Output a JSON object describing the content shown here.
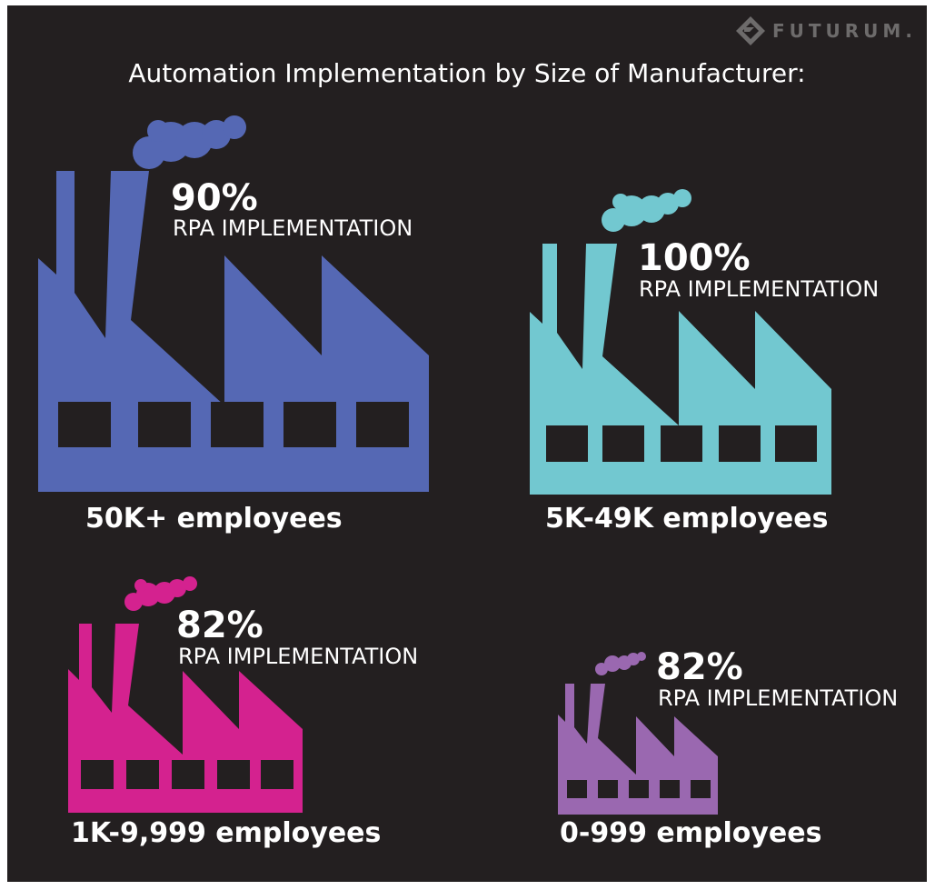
{
  "brand": {
    "name": "FUTURUM.",
    "icon": "futurum-logo-icon"
  },
  "chart_data": {
    "type": "pictograph",
    "title": "Automation Implementation by Size of Manufacturer:",
    "metric_label": "RPA IMPLEMENTATION",
    "unit": "%",
    "categories": [
      "50K+ employees",
      "5K-49K employees",
      "1K-9,999 employees",
      "0-999 employees"
    ],
    "values": [
      90,
      100,
      82,
      82
    ],
    "value_labels": [
      "90%",
      "100%",
      "82%",
      "82%"
    ],
    "colors": [
      "#5568b4",
      "#72c8d0",
      "#d4228f",
      "#9a68b0"
    ]
  }
}
